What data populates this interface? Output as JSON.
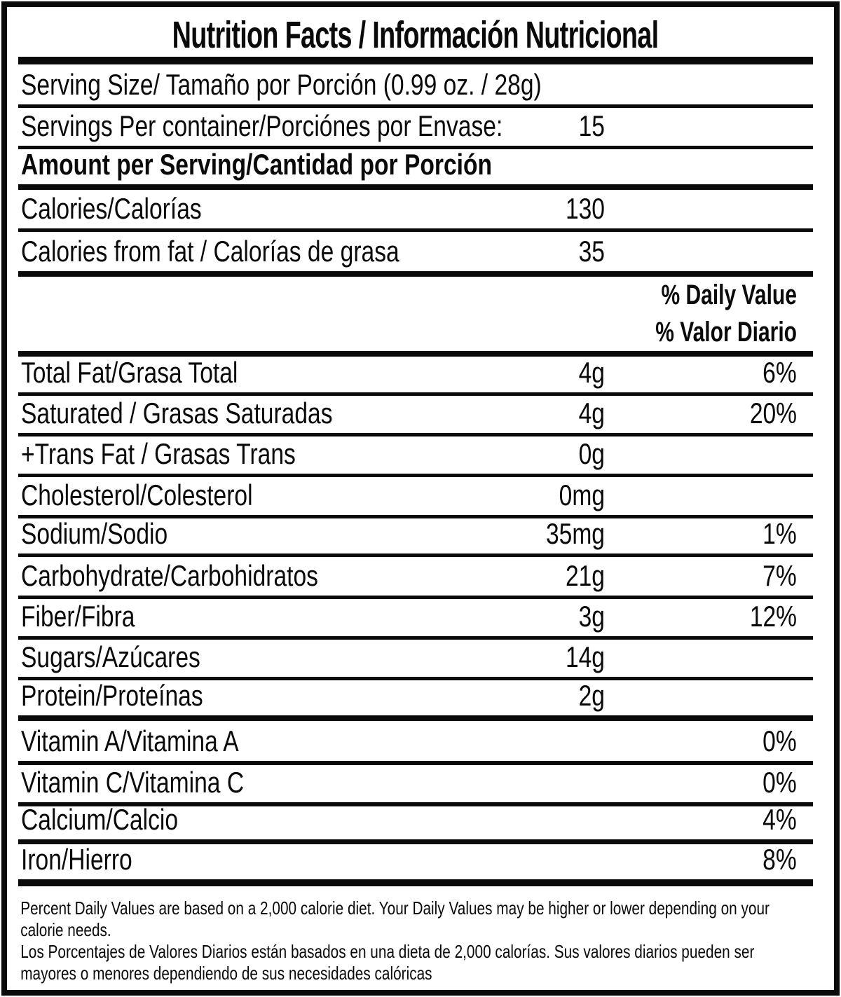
{
  "document": {
    "title": "Nutrition Facts / Información Nutricional",
    "serving_size_line": "Serving Size/ Tamaño por Porción  (0.99 oz. / 28g)",
    "servings_per_container": {
      "label": "Servings Per container/Porciónes por Envase:",
      "value": "15"
    },
    "amount_per_serving_header": "Amount per Serving/Cantidad por Porción",
    "daily_value_header": {
      "en": "% Daily Value",
      "es": "% Valor Diario"
    },
    "rows": [
      {
        "label": "Calories/Calorías",
        "amount": "130",
        "dv": ""
      },
      {
        "label": "Calories from fat / Calorías de grasa",
        "amount": "35",
        "dv": ""
      },
      {
        "label": "Total Fat/Grasa Total",
        "amount": "4g",
        "dv": "6%"
      },
      {
        "label": "Saturated / Grasas Saturadas",
        "amount": "4g",
        "dv": "20%"
      },
      {
        "label": "+Trans Fat / Grasas Trans",
        "amount": "0g",
        "dv": ""
      },
      {
        "label": "Cholesterol/Colesterol",
        "amount": "0mg",
        "dv": ""
      },
      {
        "label": "Sodium/Sodio",
        "amount": "35mg",
        "dv": "1%"
      },
      {
        "label": "Carbohydrate/Carbohidratos",
        "amount": "21g",
        "dv": "7%"
      },
      {
        "label": "Fiber/Fibra",
        "amount": "3g",
        "dv": "12%"
      },
      {
        "label": "Sugars/Azúcares",
        "amount": "14g",
        "dv": ""
      },
      {
        "label": "Protein/Proteínas",
        "amount": "2g",
        "dv": ""
      },
      {
        "label": "Vitamin A/Vitamina A",
        "amount": "",
        "dv": "0%"
      },
      {
        "label": "Vitamin C/Vitamina C",
        "amount": "",
        "dv": "0%"
      },
      {
        "label": "Calcium/Calcio",
        "amount": "",
        "dv": "4%"
      },
      {
        "label": "Iron/Hierro",
        "amount": "",
        "dv": "8%"
      }
    ],
    "footnotes": {
      "en_line1": "Percent Daily Values are based on a 2,000 calorie diet. Your Daily Values may be higher or lower depending on your",
      "en_line2": "calorie needs.",
      "es_line1": "Los Porcentajes de Valores Diarios están basados en una dieta de 2,000 calorías. Sus valores diarios pueden ser",
      "es_line2": "mayores o menores dependiendo de sus necesidades calóricas"
    },
    "colors": {
      "ink": "#0a0a0a",
      "paper": "#ffffff"
    }
  }
}
